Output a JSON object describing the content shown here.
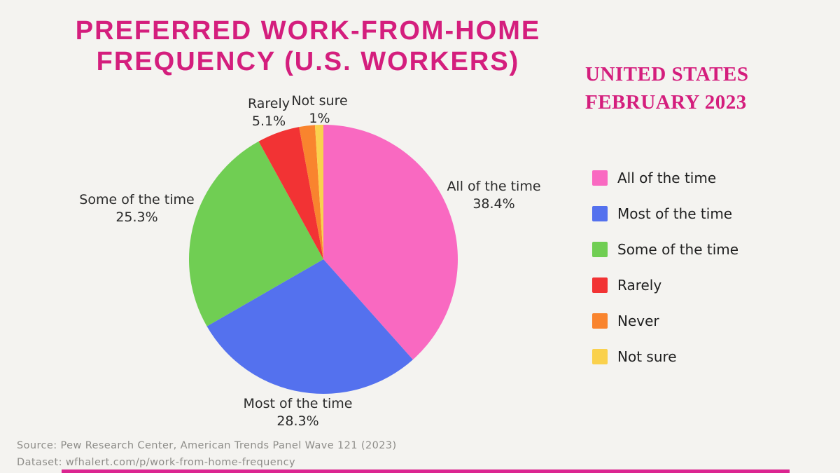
{
  "page": {
    "background_color": "#F4F3F0",
    "accent_color": "#D41E7D"
  },
  "title": {
    "line1": "PREFERRED WORK-FROM-HOME",
    "line2": "FREQUENCY (U.S. WORKERS)"
  },
  "subtitle": {
    "line1": "UNITED STATES",
    "line2": "FEBRUARY 2023"
  },
  "chart_data": {
    "type": "pie",
    "title": "Preferred Work-From-Home Frequency (U.S. Workers)",
    "categories": [
      "All of the time",
      "Most of the time",
      "Some of the time",
      "Rarely",
      "Never",
      "Not sure"
    ],
    "values": [
      38.4,
      28.3,
      25.3,
      5.1,
      1.9,
      1.0
    ],
    "value_labels": [
      "38.4%",
      "28.3%",
      "25.3%",
      "5.1%",
      "",
      "1%"
    ],
    "colors": [
      "#F969C1",
      "#5471EE",
      "#70CE53",
      "#F23334",
      "#F9842E",
      "#FAD14D"
    ],
    "slugs": [
      "all-of-the-time",
      "most-of-the-time",
      "some-of-the-time",
      "rarely",
      "never",
      "not-sure"
    ],
    "start_angle_deg": 0,
    "direction": "clockwise",
    "legend_position": "right"
  },
  "pie_labels": {
    "all": {
      "name": "All of the time",
      "value": "38.4%"
    },
    "most": {
      "name": "Most of the time",
      "value": "28.3%"
    },
    "some": {
      "name": "Some of the time",
      "value": "25.3%"
    },
    "rarely": {
      "name": "Rarely",
      "value": "5.1%"
    },
    "not_sure": {
      "name": "Not sure",
      "value": "1%"
    }
  },
  "legend": {
    "items": [
      {
        "label": "All of the time",
        "color": "#F969C1"
      },
      {
        "label": "Most of the time",
        "color": "#5471EE"
      },
      {
        "label": "Some of the time",
        "color": "#70CE53"
      },
      {
        "label": "Rarely",
        "color": "#F23334"
      },
      {
        "label": "Never",
        "color": "#F9842E"
      },
      {
        "label": "Not sure",
        "color": "#FAD14D"
      }
    ]
  },
  "footer": {
    "source": "Source: Pew Research Center, American Trends Panel Wave 121 (2023)",
    "dataset": "Dataset: wfhalert.com/p/work-from-home-frequency"
  }
}
